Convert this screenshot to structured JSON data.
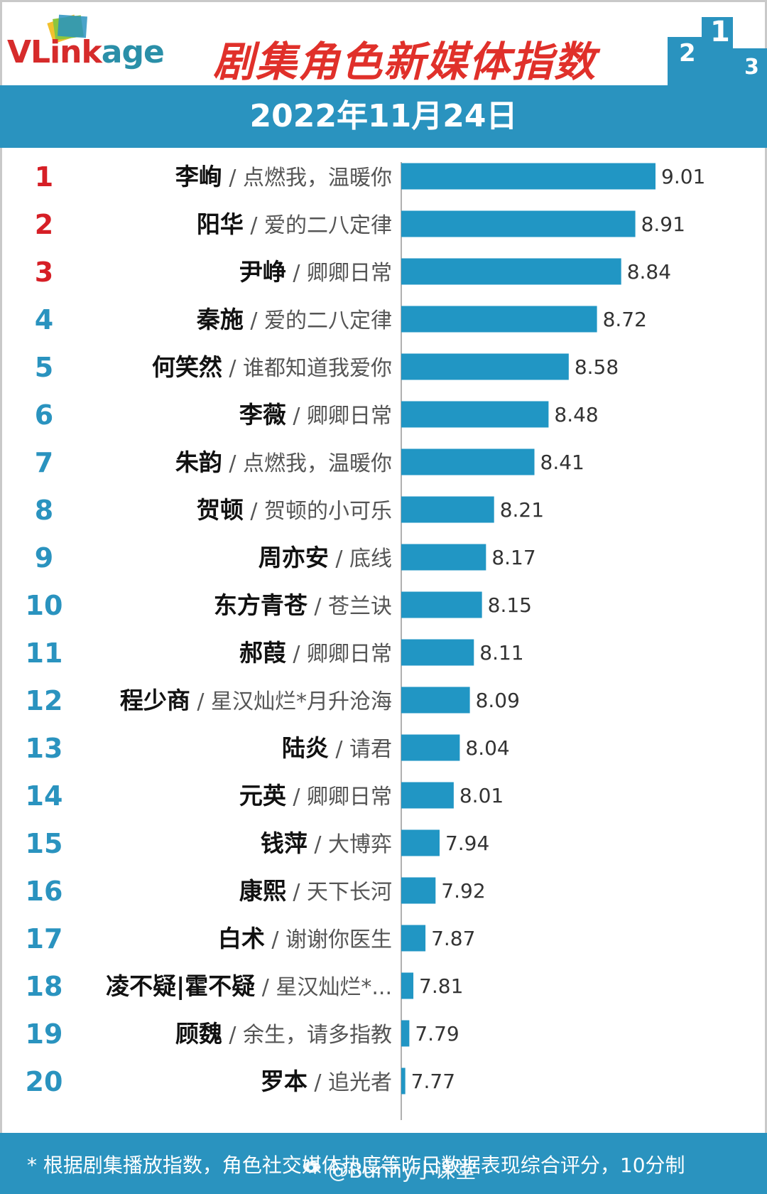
{
  "header": {
    "logo_v_link": "VLink",
    "logo_age": "age",
    "title": "剧集角色新媒体指数",
    "podium_labels": [
      "2",
      "1",
      "3"
    ]
  },
  "date": "2022年11月24日",
  "colors": {
    "accent": "#2a93bf",
    "bar": "#2196c4",
    "title": "#e0302a",
    "rank_top": "#d61f26",
    "rank_rest": "#2a93bf"
  },
  "chart_data": {
    "type": "bar",
    "orientation": "horizontal",
    "series": [
      {
        "values": [
          9.01,
          8.91,
          8.84,
          8.72,
          8.58,
          8.48,
          8.41,
          8.21,
          8.17,
          8.15,
          8.11,
          8.09,
          8.04,
          8.01,
          7.94,
          7.92,
          7.87,
          7.81,
          7.79,
          7.77
        ]
      }
    ],
    "ranks": [
      "1",
      "2",
      "3",
      "4",
      "5",
      "6",
      "7",
      "8",
      "9",
      "10",
      "11",
      "12",
      "13",
      "14",
      "15",
      "16",
      "17",
      "18",
      "19",
      "20"
    ],
    "names": [
      "李峋",
      "阳华",
      "尹峥",
      "秦施",
      "何笑然",
      "李薇",
      "朱韵",
      "贺顿",
      "周亦安",
      "东方青苍",
      "郝葭",
      "程少商",
      "陆炎",
      "元英",
      "钱萍",
      "康熙",
      "白术",
      "凌不疑|霍不疑",
      "顾魏",
      "罗本"
    ],
    "shows": [
      "点燃我，温暖你",
      "爱的二八定律",
      "卿卿日常",
      "爱的二八定律",
      "谁都知道我爱你",
      "卿卿日常",
      "点燃我，温暖你",
      "贺顿的小可乐",
      "底线",
      "苍兰诀",
      "卿卿日常",
      "星汉灿烂*月升沧海",
      "请君",
      "卿卿日常",
      "大博弈",
      "天下长河",
      "谢谢你医生",
      "星汉灿烂*...",
      "余生，请多指教",
      "追光者"
    ],
    "separator": " / ",
    "value_labels": [
      "9.01",
      "8.91",
      "8.84",
      "8.72",
      "8.58",
      "8.48",
      "8.41",
      "8.21",
      "8.17",
      "8.15",
      "8.11",
      "8.09",
      "8.04",
      "8.01",
      "7.94",
      "7.92",
      "7.87",
      "7.81",
      "7.79",
      "7.77"
    ],
    "xlim": [
      7.75,
      9.01
    ],
    "grid": false,
    "legend": "none"
  },
  "footer": {
    "note": "* 根据剧集播放指数，角色社交媒体热度等昨日数据表现综合评分，10分制",
    "watermark": "@Bunny小课堂"
  }
}
